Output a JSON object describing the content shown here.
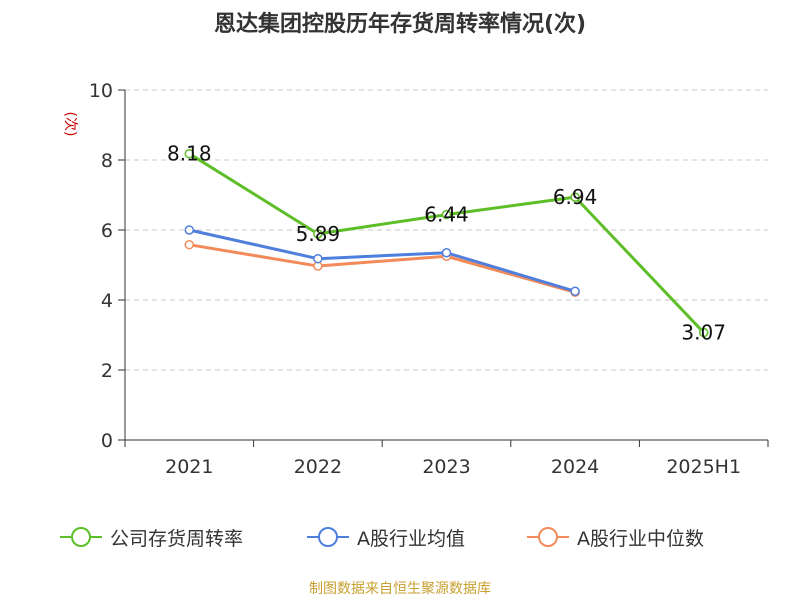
{
  "title": "恩达集团控股历年存货周转率情况(次)",
  "unit_label": "(次)",
  "source": "制图数据来自恒生聚源数据库",
  "colors": {
    "company": "#5dbe28",
    "industry_avg": "#4f7fdc",
    "industry_median": "#f28a5a",
    "grid": "#c8c8c8",
    "axis": "#333333",
    "unit": "#cc0000"
  },
  "chart_data": {
    "type": "line",
    "title": "恩达集团控股历年存货周转率情况(次)",
    "xlabel": "",
    "ylabel": "(次)",
    "categories": [
      "2021",
      "2022",
      "2023",
      "2024",
      "2025H1"
    ],
    "ylim": [
      0,
      10
    ],
    "yticks": [
      0,
      2,
      4,
      6,
      8,
      10
    ],
    "grid": true,
    "legend_position": "bottom",
    "series": [
      {
        "name": "公司存货周转率",
        "color": "#5dbe28",
        "values": [
          8.18,
          5.89,
          6.44,
          6.94,
          3.07
        ],
        "labels": [
          "8.18",
          "5.89",
          "6.44",
          "6.94",
          "3.07"
        ]
      },
      {
        "name": "A股行业均值",
        "color": "#4f7fdc",
        "values": [
          6.0,
          5.18,
          5.35,
          4.25,
          null
        ]
      },
      {
        "name": "A股行业中位数",
        "color": "#f28a5a",
        "values": [
          5.58,
          4.97,
          5.25,
          4.22,
          null
        ]
      }
    ]
  }
}
